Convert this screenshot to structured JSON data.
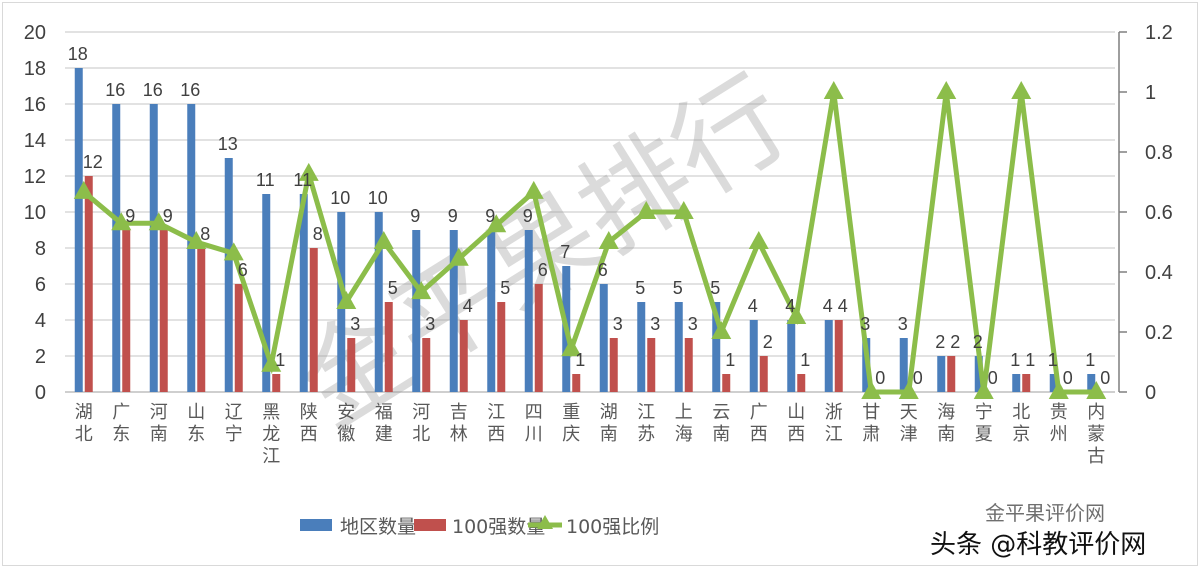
{
  "chart_data": {
    "type": "bar",
    "title": "",
    "xlabel": "",
    "ylabel": "",
    "ylim": [
      0,
      20
    ],
    "y2lim": [
      0,
      1.2
    ],
    "y_ticks": [
      0,
      2,
      4,
      6,
      8,
      10,
      12,
      14,
      16,
      18,
      20
    ],
    "y2_ticks": [
      "0",
      "0.2",
      "0.4",
      "0.6",
      "0.8",
      "1",
      "1.2"
    ],
    "grid": true,
    "legend_position": "bottom",
    "categories": [
      "湖北",
      "广东",
      "河南",
      "山东",
      "辽宁",
      "黑龙江",
      "陕西",
      "安徽",
      "福建",
      "河北",
      "吉林",
      "江西",
      "四川",
      "重庆",
      "湖南",
      "江苏",
      "上海",
      "云南",
      "广西",
      "山西",
      "浙江",
      "甘肃",
      "天津",
      "海南",
      "宁夏",
      "北京",
      "贵州",
      "内蒙古"
    ],
    "series": [
      {
        "name": "地区数量",
        "type": "bar",
        "axis": "left",
        "color": "#4a7ebb",
        "values": [
          18,
          16,
          16,
          16,
          13,
          11,
          11,
          10,
          10,
          9,
          9,
          9,
          9,
          7,
          6,
          5,
          5,
          5,
          4,
          4,
          4,
          3,
          3,
          2,
          2,
          1,
          1,
          1
        ]
      },
      {
        "name": "100强数量",
        "type": "bar",
        "axis": "left",
        "color": "#c0504d",
        "values": [
          12,
          9,
          9,
          8,
          6,
          1,
          8,
          3,
          5,
          3,
          4,
          5,
          6,
          1,
          3,
          3,
          3,
          1,
          2,
          1,
          4,
          0,
          0,
          2,
          0,
          1,
          0,
          0
        ]
      },
      {
        "name": "100强比例",
        "type": "line",
        "axis": "right",
        "color": "#8cbd4a",
        "marker": "triangle",
        "values": [
          0.667,
          0.5625,
          0.5625,
          0.5,
          0.462,
          0.091,
          0.727,
          0.3,
          0.5,
          0.333,
          0.444,
          0.556,
          0.667,
          0.143,
          0.5,
          0.6,
          0.6,
          0.2,
          0.5,
          0.25,
          1.0,
          0,
          0,
          1.0,
          0,
          1.0,
          0,
          0
        ]
      }
    ]
  },
  "legend": {
    "items": [
      {
        "label": "地区数量",
        "color": "#4a7ebb"
      },
      {
        "label": "100强数量",
        "color": "#c0504d"
      },
      {
        "label": "100强比例",
        "color": "#8cbd4a"
      }
    ]
  },
  "watermark": {
    "text": "金平果排行"
  },
  "credit": {
    "line1": "金平果评价网",
    "line2": "头条 @科教评价网"
  }
}
